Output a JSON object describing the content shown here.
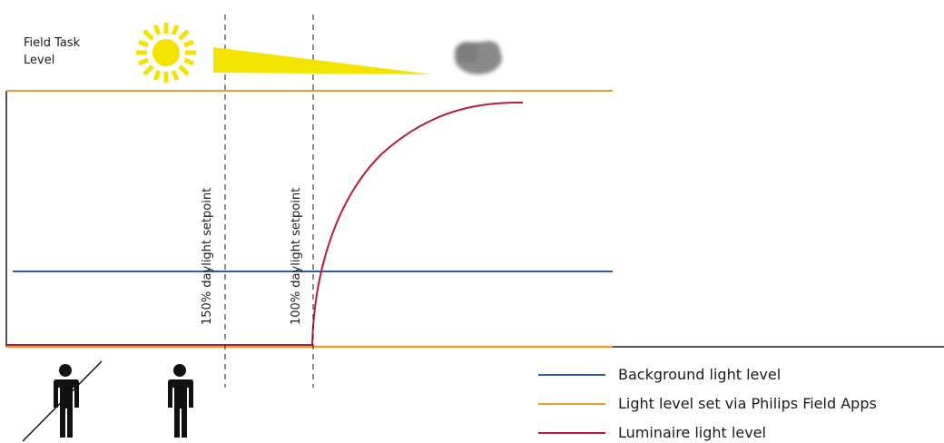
{
  "field_task_level_label": "Field Task\nLevel",
  "setpoints": [
    {
      "label": "150% daylight setpoint"
    },
    {
      "label": "100% daylight setpoint"
    }
  ],
  "legend": [
    {
      "label": "Background light level",
      "color": "#2f5f9e"
    },
    {
      "label": "Light level set via Philips Field Apps",
      "color": "#e8a02a"
    },
    {
      "label": "Luminaire light level",
      "color": "#b81d3a"
    }
  ],
  "icons": {
    "sun": "sun-icon",
    "cloud": "cloud-icon",
    "person_crossed": "person-crossed-out-icon",
    "person": "person-icon",
    "daylight_wedge": "daylight-decrease-wedge"
  },
  "colors": {
    "axis": "#1a1a1a",
    "dashed": "#1a1a1a",
    "sun": "#f2e400",
    "wedge": "#f2e400",
    "cloud": "#8a8a8a",
    "person": "#111111"
  }
}
